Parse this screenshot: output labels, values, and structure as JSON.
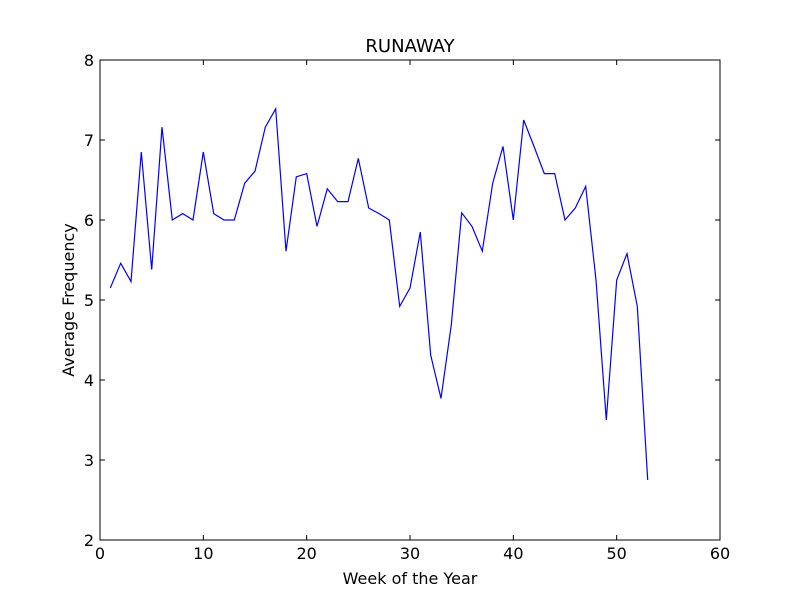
{
  "chart_data": {
    "type": "line",
    "title": "RUNAWAY",
    "xlabel": "Week of the Year",
    "ylabel": "Average Frequency",
    "xlim": [
      0,
      60
    ],
    "ylim": [
      2,
      8
    ],
    "xticks": [
      0,
      10,
      20,
      30,
      40,
      50,
      60
    ],
    "yticks": [
      2,
      3,
      4,
      5,
      6,
      7,
      8
    ],
    "grid": false,
    "series": [
      {
        "color": "#0000ff",
        "x": [
          1,
          2,
          3,
          4,
          5,
          6,
          7,
          8,
          9,
          10,
          11,
          12,
          13,
          14,
          15,
          16,
          17,
          18,
          19,
          20,
          21,
          22,
          23,
          24,
          25,
          26,
          27,
          28,
          29,
          30,
          31,
          32,
          33,
          34,
          35,
          36,
          37,
          38,
          39,
          40,
          41,
          42,
          43,
          44,
          45,
          46,
          47,
          48,
          49,
          50,
          51,
          52,
          53
        ],
        "y": [
          5.15,
          5.46,
          5.23,
          6.85,
          5.38,
          7.16,
          6.0,
          6.08,
          6.0,
          6.85,
          6.08,
          6.0,
          6.0,
          6.46,
          6.61,
          7.16,
          7.39,
          5.61,
          6.54,
          6.58,
          5.92,
          6.39,
          6.23,
          6.23,
          6.77,
          6.15,
          6.08,
          6.0,
          4.92,
          5.15,
          5.85,
          4.31,
          3.77,
          4.69,
          6.09,
          5.92,
          5.61,
          6.46,
          6.92,
          6.0,
          7.25,
          6.92,
          6.58,
          6.58,
          6.0,
          6.15,
          6.42,
          5.25,
          3.5,
          5.25,
          5.58,
          4.92,
          2.75
        ]
      }
    ]
  }
}
